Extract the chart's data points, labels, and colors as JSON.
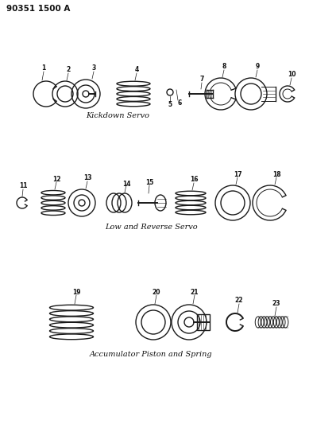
{
  "bg_color": "#ffffff",
  "line_color": "#1a1a1a",
  "title_code": "90351 1500 A",
  "section1_label": "Kickdown Servo",
  "section2_label": "Low and Reverse Servo",
  "section3_label": "Accumulator Piston and Spring",
  "font_size_code": 7.5,
  "font_size_label": 7,
  "font_size_number": 5.5
}
